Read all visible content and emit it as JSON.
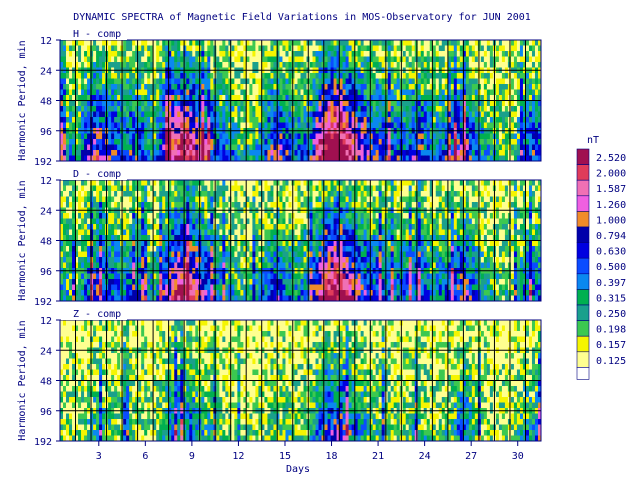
{
  "chart_data": {
    "type": "heatmap",
    "title": "DYNAMIC SPECTRA of Magnetic Field Variations in MOS-Observatory for JUN 2001",
    "xlabel": "Days",
    "ylabel": "Harmonic Period, min",
    "x_ticks": [
      "3",
      "6",
      "9",
      "12",
      "15",
      "18",
      "21",
      "24",
      "27",
      "30"
    ],
    "xlim": [
      1,
      31
    ],
    "y_ticks": [
      "12",
      "24",
      "48",
      "96",
      "192"
    ],
    "y_scale": "log2",
    "grid": true,
    "panels": [
      {
        "name": "H - comp",
        "activity": [
          0.35,
          0.25,
          0.6,
          0.55,
          0.4,
          0.45,
          0.3,
          0.75,
          0.85,
          0.65,
          0.45,
          0.3,
          0.2,
          0.35,
          0.6,
          0.35,
          0.4,
          0.95,
          1.0,
          0.7,
          0.5,
          0.45,
          0.4,
          0.55,
          0.35,
          0.45,
          0.6,
          0.3,
          0.25,
          0.15,
          0.45
        ]
      },
      {
        "name": "D - comp",
        "activity": [
          0.3,
          0.2,
          0.5,
          0.45,
          0.35,
          0.4,
          0.25,
          0.65,
          0.8,
          0.6,
          0.4,
          0.25,
          0.2,
          0.3,
          0.5,
          0.3,
          0.35,
          0.85,
          0.9,
          0.6,
          0.45,
          0.4,
          0.35,
          0.45,
          0.3,
          0.4,
          0.55,
          0.25,
          0.2,
          0.15,
          0.4
        ]
      },
      {
        "name": "Z - comp",
        "activity": [
          0.15,
          0.1,
          0.25,
          0.2,
          0.15,
          0.2,
          0.1,
          0.35,
          0.4,
          0.3,
          0.2,
          0.1,
          0.1,
          0.15,
          0.25,
          0.15,
          0.2,
          0.45,
          0.55,
          0.35,
          0.2,
          0.2,
          0.15,
          0.25,
          0.15,
          0.2,
          0.4,
          0.15,
          0.1,
          0.1,
          0.3
        ]
      }
    ],
    "legend": {
      "unit": "nT",
      "placement": "right",
      "levels": [
        {
          "value": "2.520",
          "color": "#a01050"
        },
        {
          "value": "2.000",
          "color": "#e03c5a"
        },
        {
          "value": "1.587",
          "color": "#f070b4"
        },
        {
          "value": "1.260",
          "color": "#f060e0"
        },
        {
          "value": "1.000",
          "color": "#f08c28"
        },
        {
          "value": "0.794",
          "color": "#0000aa"
        },
        {
          "value": "0.630",
          "color": "#0000e0"
        },
        {
          "value": "0.500",
          "color": "#0a4cff"
        },
        {
          "value": "0.397",
          "color": "#0a88f0"
        },
        {
          "value": "0.315",
          "color": "#00b050"
        },
        {
          "value": "0.250",
          "color": "#1aa08c"
        },
        {
          "value": "0.198",
          "color": "#3cc850"
        },
        {
          "value": "0.157",
          "color": "#f5f500"
        },
        {
          "value": "0.125",
          "color": "#ffff90"
        }
      ]
    }
  }
}
